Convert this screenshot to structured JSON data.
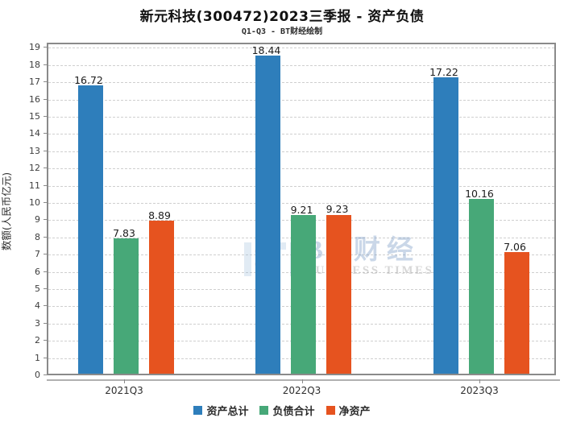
{
  "title": "新元科技(300472)2023三季报 - 资产负债",
  "subtitle": "Q1-Q3 - BT财经绘制",
  "watermark": {
    "logo_text": "BT财经",
    "sub_text": "BUSINESS TIMES"
  },
  "chart_data": {
    "type": "bar",
    "categories": [
      "2021Q3",
      "2022Q3",
      "2023Q3"
    ],
    "series": [
      {
        "name": "资产总计",
        "color": "#2E7EBB",
        "values": [
          16.72,
          18.44,
          17.22
        ]
      },
      {
        "name": "负债合计",
        "color": "#47A878",
        "values": [
          7.83,
          9.21,
          10.16
        ]
      },
      {
        "name": "净资产",
        "color": "#E6531F",
        "values": [
          8.89,
          9.23,
          7.06
        ]
      }
    ],
    "title": "新元科技(300472)2023三季报 - 资产负债",
    "subtitle": "Q1-Q3 - BT财经绘制",
    "xlabel": "",
    "ylabel": "数额(人民币亿元)",
    "ylim": [
      0,
      19.3
    ],
    "ytick_step": 1,
    "ytick_max": 19,
    "grid": true,
    "grid_style": "dashed",
    "legend_position": "bottom",
    "value_labels": true
  }
}
